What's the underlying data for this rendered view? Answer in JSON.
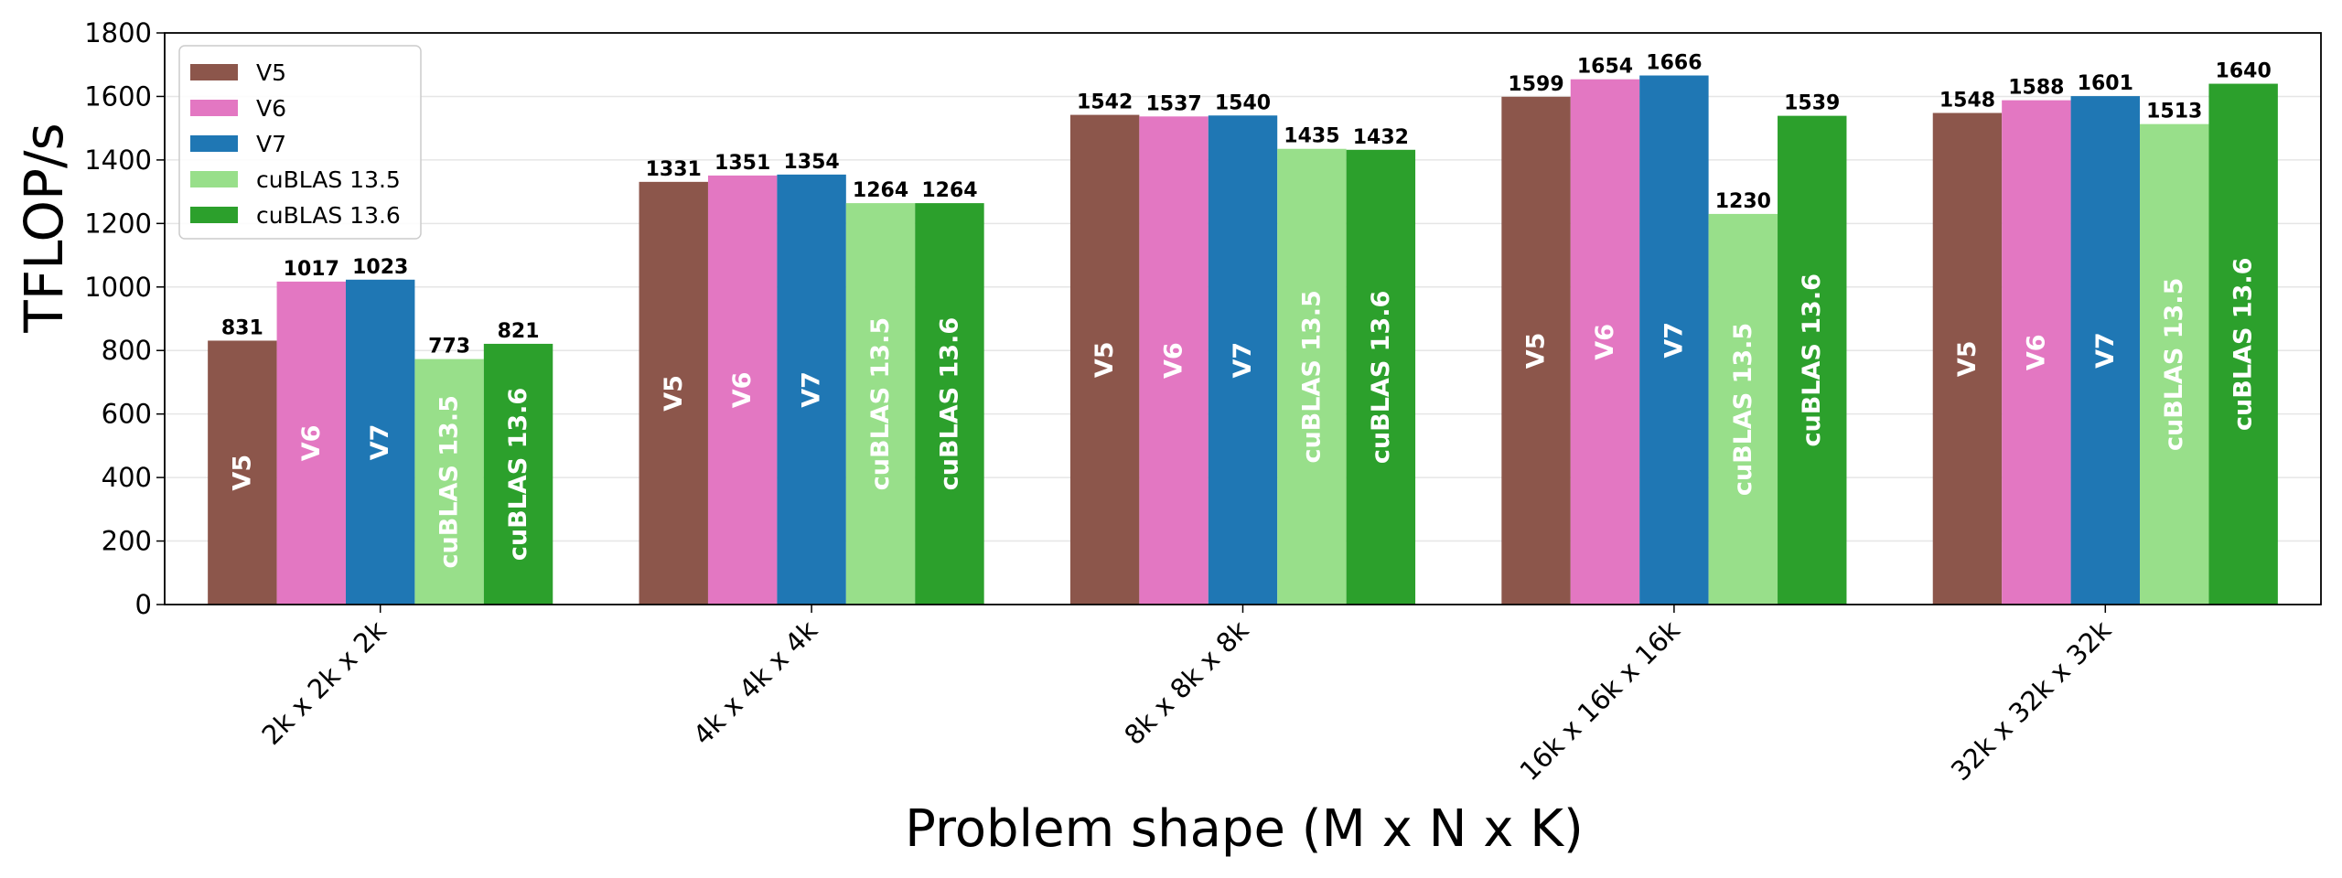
{
  "chart_data": {
    "type": "bar",
    "title": "",
    "xlabel": "Problem shape (M x N x K)",
    "ylabel": "TFLOP/s",
    "ylim": [
      0,
      1800
    ],
    "yticks": [
      0,
      200,
      400,
      600,
      800,
      1000,
      1200,
      1400,
      1600,
      1800
    ],
    "grid": "horizontal",
    "legend_position": "top-left",
    "categories": [
      "2k x 2k x 2k",
      "4k x 4k x 4k",
      "8k x 8k x 8k",
      "16k x 16k x 16k",
      "32k x 32k x 32k"
    ],
    "series": [
      {
        "name": "V5",
        "color": "#8c564b",
        "values": [
          831,
          1331,
          1542,
          1599,
          1548
        ]
      },
      {
        "name": "V6",
        "color": "#e377c2",
        "values": [
          1017,
          1351,
          1537,
          1654,
          1588
        ]
      },
      {
        "name": "V7",
        "color": "#1f77b4",
        "values": [
          1023,
          1354,
          1540,
          1666,
          1601
        ]
      },
      {
        "name": "cuBLAS 13.5",
        "color": "#98df8a",
        "values": [
          773,
          1264,
          1435,
          1230,
          1513
        ]
      },
      {
        "name": "cuBLAS 13.6",
        "color": "#2ca02c",
        "values": [
          821,
          1264,
          1432,
          1539,
          1640
        ]
      }
    ]
  }
}
